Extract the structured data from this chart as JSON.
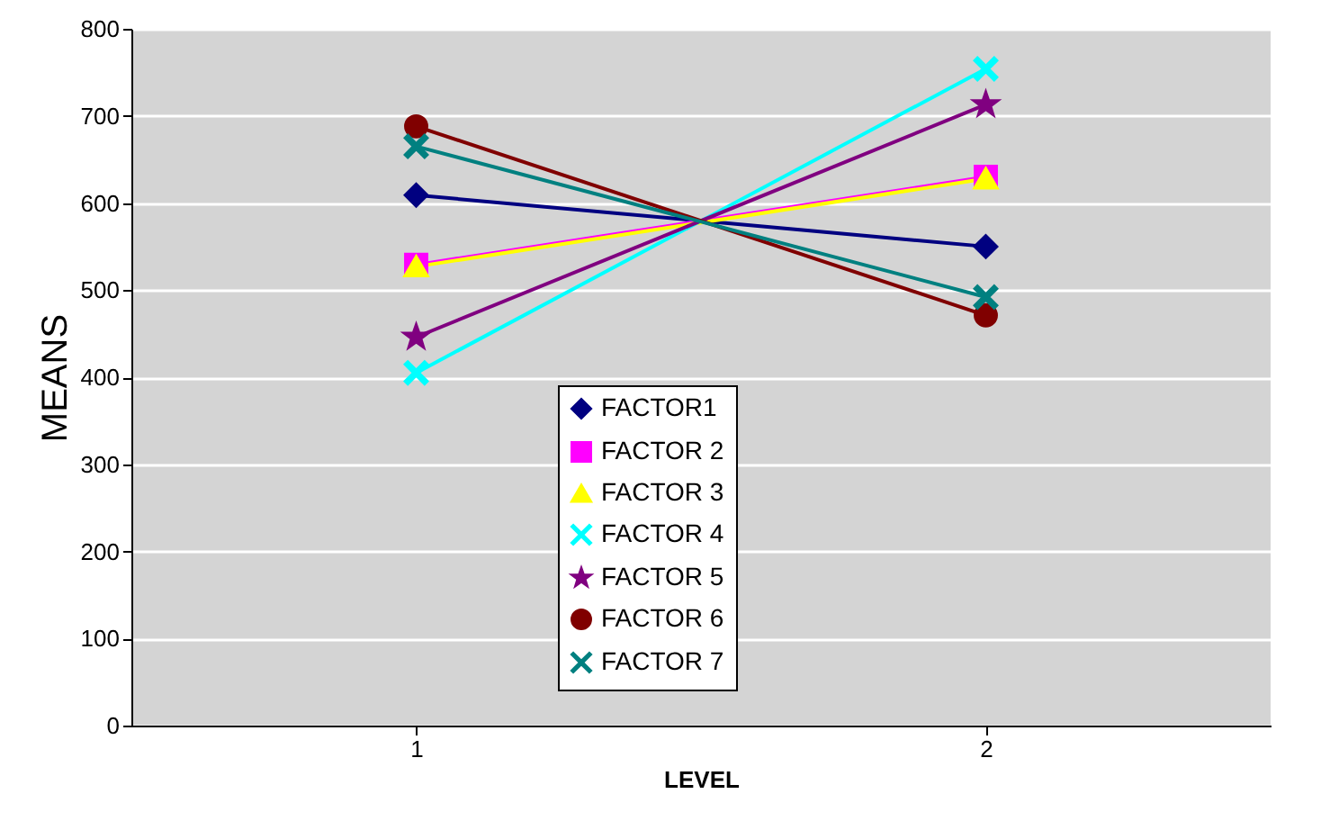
{
  "chart_data": {
    "type": "line",
    "xlabel": "LEVEL",
    "ylabel": "MEANS",
    "categories": [
      "1",
      "2"
    ],
    "series": [
      {
        "name": "FACTOR1",
        "color": "#000080",
        "marker": "diamond",
        "values": [
          609,
          550
        ]
      },
      {
        "name": "FACTOR 2",
        "color": "#ff00ff",
        "marker": "square",
        "values": [
          529,
          630
        ]
      },
      {
        "name": "FACTOR 3",
        "color": "#ffff00",
        "marker": "triangle",
        "values": [
          527,
          628
        ]
      },
      {
        "name": "FACTOR 4",
        "color": "#00ffff",
        "marker": "cross",
        "values": [
          405,
          754
        ]
      },
      {
        "name": "FACTOR 5",
        "color": "#800080",
        "marker": "star",
        "values": [
          446,
          713
        ]
      },
      {
        "name": "FACTOR 6",
        "color": "#800000",
        "marker": "circle",
        "values": [
          688,
          471
        ]
      },
      {
        "name": "FACTOR 7",
        "color": "#008080",
        "marker": "cross",
        "values": [
          665,
          492
        ]
      }
    ],
    "ylim": [
      0,
      800
    ],
    "yticks": [
      0,
      100,
      200,
      300,
      400,
      500,
      600,
      700,
      800
    ],
    "grid": "y",
    "legend": "bottom",
    "line_style": "solid"
  }
}
